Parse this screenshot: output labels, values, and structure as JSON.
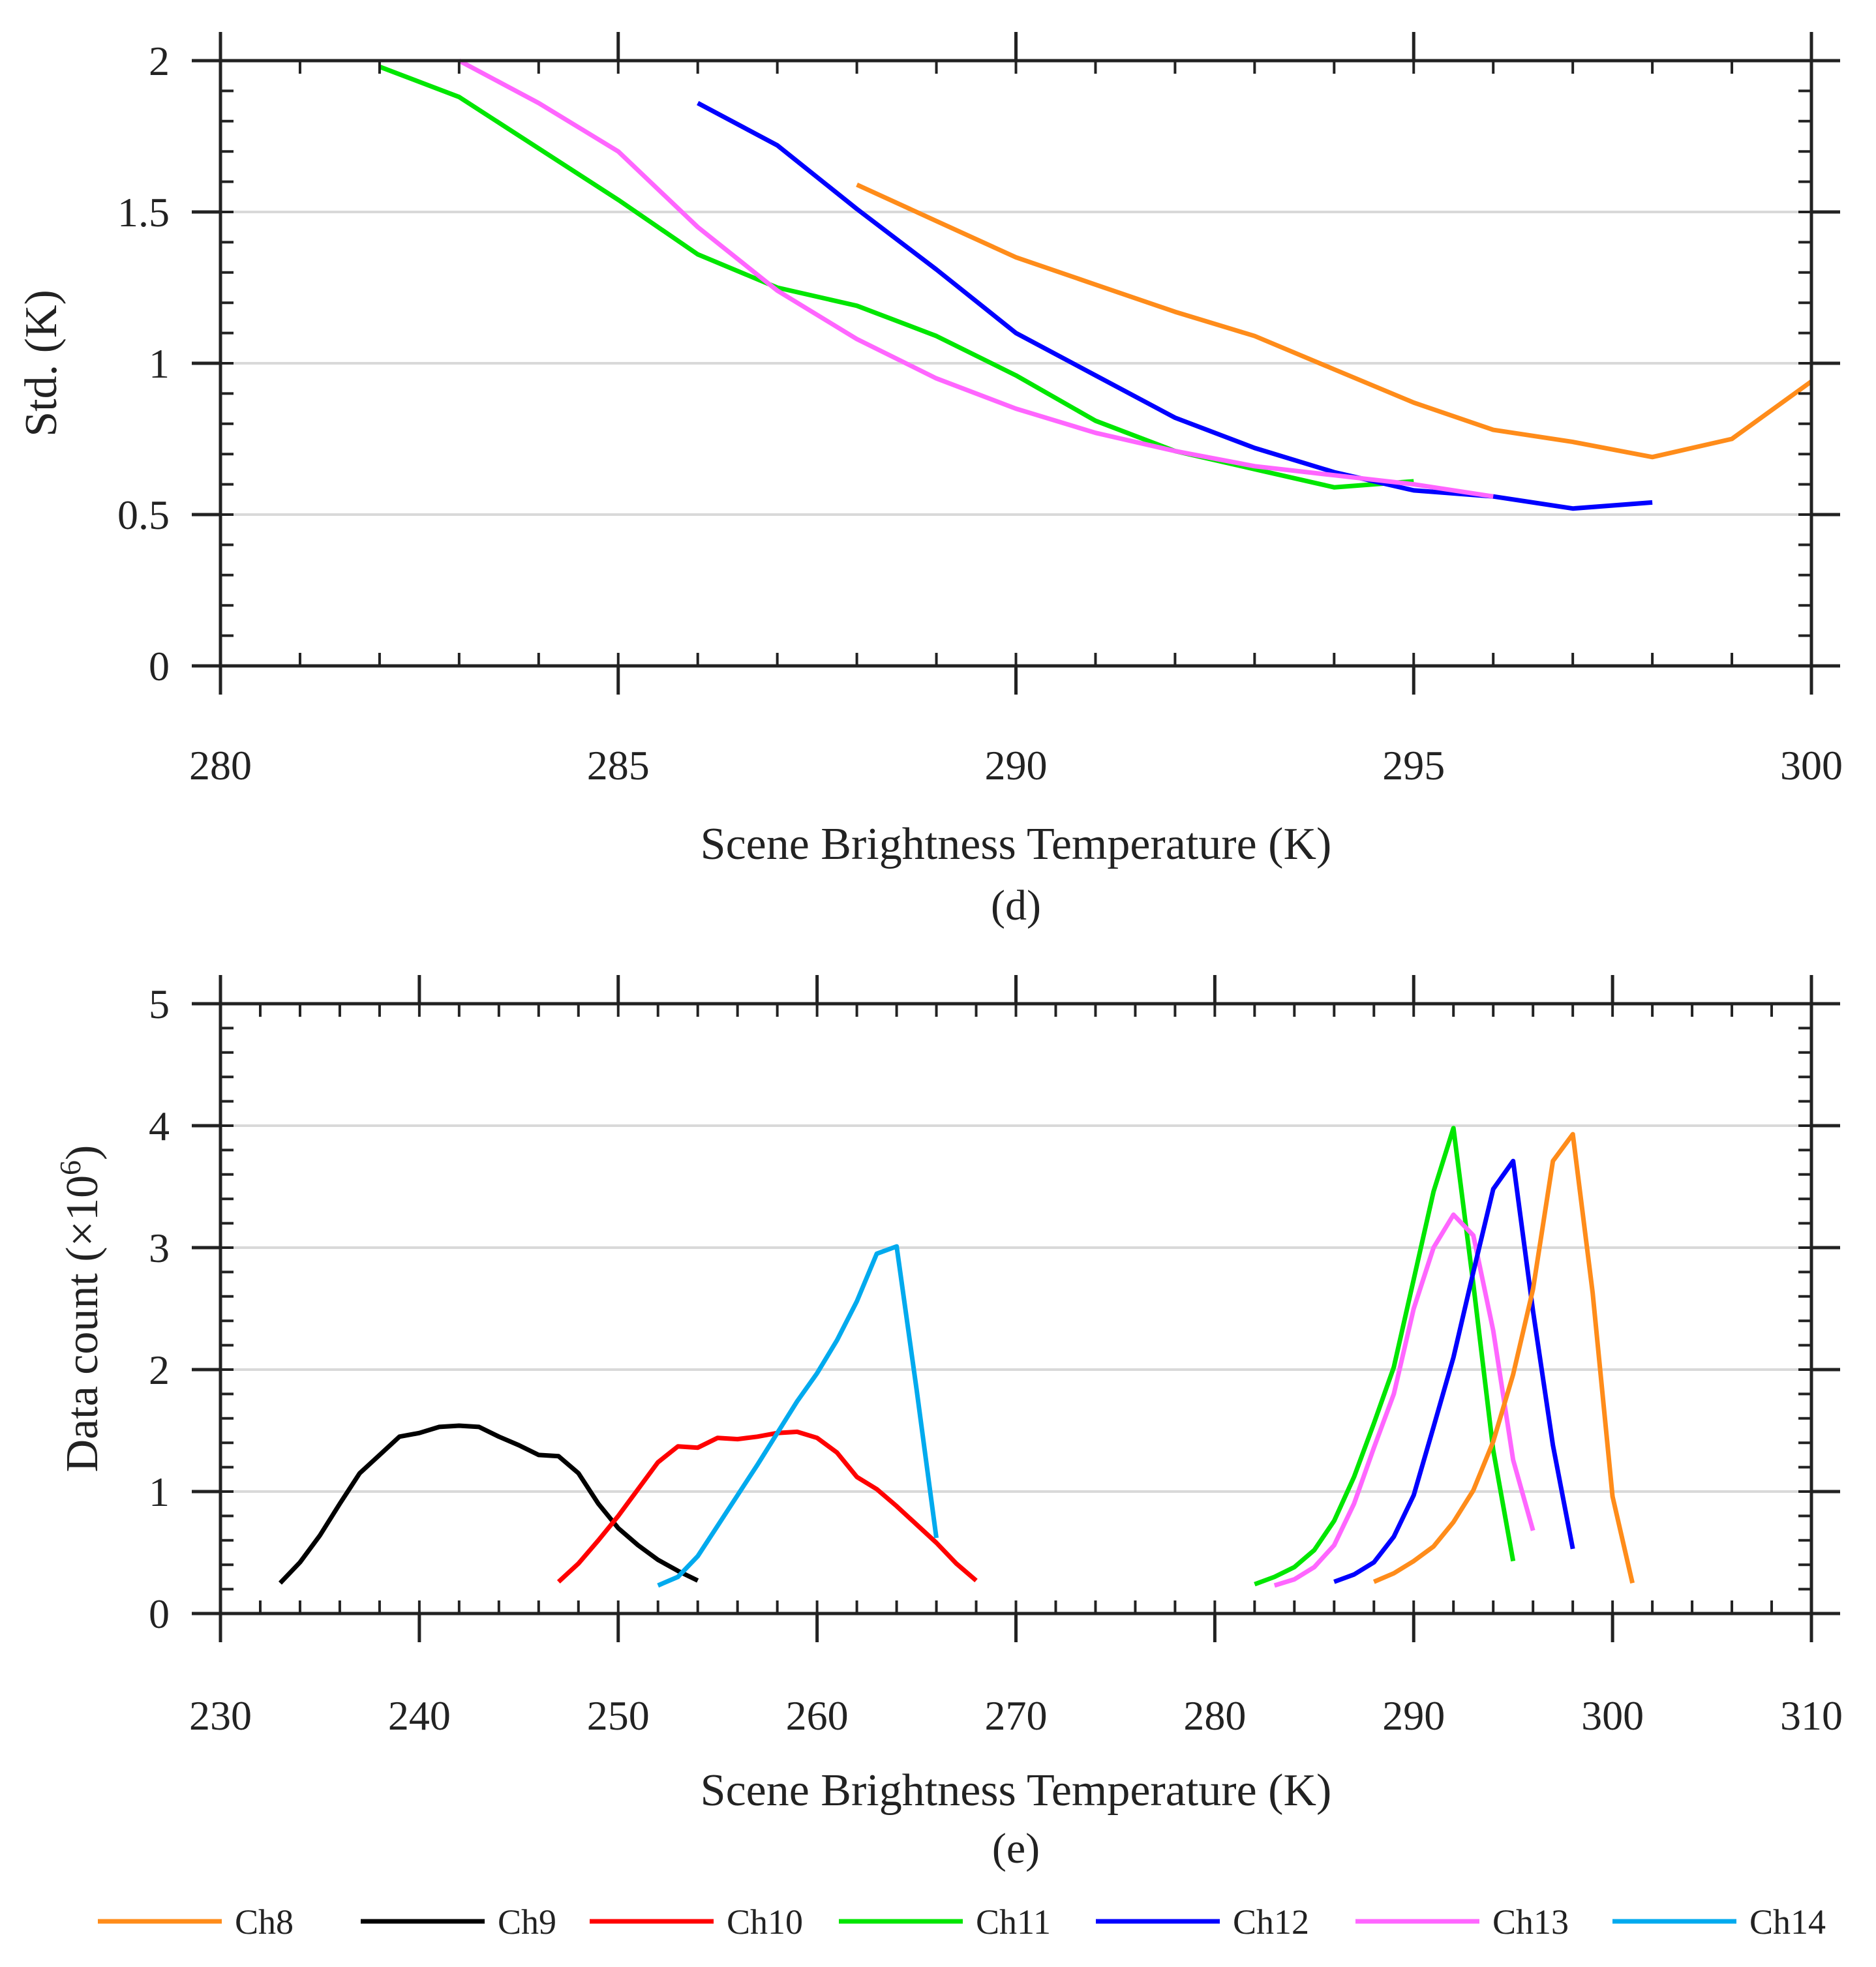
{
  "legend": [
    {
      "name": "Ch8",
      "color": "#ff8c1a"
    },
    {
      "name": "Ch9",
      "color": "#000000"
    },
    {
      "name": "Ch10",
      "color": "#ff0000"
    },
    {
      "name": "Ch11",
      "color": "#00e600"
    },
    {
      "name": "Ch12",
      "color": "#0000ff"
    },
    {
      "name": "Ch13",
      "color": "#ff66ff"
    },
    {
      "name": "Ch14",
      "color": "#00aaee"
    }
  ],
  "chart_data": [
    {
      "id": "d",
      "type": "line",
      "panel_label": "(d)",
      "xlabel": "Scene Brightness Temperature (K)",
      "ylabel": "Std. (K)",
      "xlim": [
        280,
        300
      ],
      "ylim": [
        0,
        2
      ],
      "xticks": [
        280,
        285,
        290,
        295,
        300
      ],
      "yticks": [
        0,
        0.5,
        1,
        1.5,
        2
      ],
      "ytick_labels": [
        "0",
        "0.5",
        "1",
        "1.5",
        "2"
      ],
      "grid": "horizontal",
      "series": [
        {
          "name": "Ch8",
          "x": [
            288,
            289,
            290,
            291,
            292,
            293,
            294,
            295,
            296,
            297,
            298,
            299,
            300
          ],
          "y": [
            1.59,
            1.47,
            1.35,
            1.26,
            1.17,
            1.09,
            0.98,
            0.87,
            0.78,
            0.74,
            0.69,
            0.75,
            0.94
          ]
        },
        {
          "name": "Ch11",
          "x": [
            282,
            283,
            284,
            285,
            286,
            287,
            288,
            289,
            290,
            291,
            292,
            293,
            294,
            295
          ],
          "y": [
            1.98,
            1.88,
            1.71,
            1.54,
            1.36,
            1.25,
            1.19,
            1.09,
            0.96,
            0.81,
            0.71,
            0.65,
            0.59,
            0.61
          ]
        },
        {
          "name": "Ch12",
          "x": [
            286,
            287,
            288,
            289,
            290,
            291,
            292,
            293,
            294,
            295,
            296,
            297,
            298
          ],
          "y": [
            1.86,
            1.72,
            1.51,
            1.31,
            1.1,
            0.96,
            0.82,
            0.72,
            0.64,
            0.58,
            0.56,
            0.52,
            0.54
          ]
        },
        {
          "name": "Ch13",
          "x": [
            283,
            284,
            285,
            286,
            287,
            288,
            289,
            290,
            291,
            292,
            293,
            294,
            295,
            296
          ],
          "y": [
            2.0,
            1.86,
            1.7,
            1.45,
            1.24,
            1.08,
            0.95,
            0.85,
            0.77,
            0.71,
            0.66,
            0.63,
            0.6,
            0.56
          ]
        }
      ]
    },
    {
      "id": "e",
      "type": "line",
      "panel_label": "(e)",
      "xlabel": "Scene Brightness Temperature (K)",
      "ylabel_main": "Data count (×10",
      "ylabel_sup": "6",
      "ylabel_end": ")",
      "xlim": [
        230,
        310
      ],
      "ylim": [
        0,
        5
      ],
      "xticks": [
        230,
        240,
        250,
        260,
        270,
        280,
        290,
        300,
        310
      ],
      "yticks": [
        0,
        1,
        2,
        3,
        4,
        5
      ],
      "ytick_labels": [
        "0",
        "1",
        "2",
        "3",
        "4",
        "5"
      ],
      "grid": "horizontal",
      "series": [
        {
          "name": "Ch9",
          "x": [
            233,
            234,
            235,
            236,
            237,
            238,
            239,
            240,
            241,
            242,
            243,
            244,
            245,
            246,
            247,
            248,
            249,
            250,
            251,
            252,
            253,
            254
          ],
          "y": [
            0.25,
            0.42,
            0.64,
            0.9,
            1.15,
            1.3,
            1.45,
            1.48,
            1.53,
            1.54,
            1.53,
            1.45,
            1.38,
            1.3,
            1.29,
            1.15,
            0.9,
            0.7,
            0.56,
            0.44,
            0.35,
            0.27
          ]
        },
        {
          "name": "Ch10",
          "x": [
            247,
            248,
            249,
            250,
            251,
            252,
            253,
            254,
            255,
            256,
            257,
            258,
            259,
            260,
            261,
            262,
            263,
            264,
            265,
            266,
            267,
            268
          ],
          "y": [
            0.26,
            0.41,
            0.6,
            0.8,
            1.02,
            1.24,
            1.37,
            1.36,
            1.44,
            1.43,
            1.45,
            1.48,
            1.49,
            1.44,
            1.32,
            1.12,
            1.02,
            0.88,
            0.73,
            0.58,
            0.41,
            0.27
          ]
        },
        {
          "name": "Ch14",
          "x": [
            252,
            253,
            254,
            255,
            256,
            257,
            258,
            259,
            260,
            261,
            262,
            263,
            264,
            265,
            266
          ],
          "y": [
            0.23,
            0.3,
            0.47,
            0.72,
            0.97,
            1.22,
            1.48,
            1.74,
            1.97,
            2.24,
            2.56,
            2.95,
            3.01,
            1.84,
            0.62
          ]
        },
        {
          "name": "Ch11",
          "x": [
            282,
            283,
            284,
            285,
            286,
            287,
            288,
            289,
            290,
            291,
            292,
            293,
            294,
            295
          ],
          "y": [
            0.24,
            0.3,
            0.38,
            0.52,
            0.76,
            1.12,
            1.56,
            2.02,
            2.74,
            3.46,
            3.98,
            2.7,
            1.34,
            0.43
          ]
        },
        {
          "name": "Ch13",
          "x": [
            283,
            284,
            285,
            286,
            287,
            288,
            289,
            290,
            291,
            292,
            293,
            294,
            295,
            296
          ],
          "y": [
            0.23,
            0.28,
            0.38,
            0.56,
            0.9,
            1.36,
            1.8,
            2.5,
            3.0,
            3.27,
            3.1,
            2.32,
            1.26,
            0.68
          ]
        },
        {
          "name": "Ch12",
          "x": [
            286,
            287,
            288,
            289,
            290,
            291,
            292,
            293,
            294,
            295,
            296,
            297,
            298
          ],
          "y": [
            0.26,
            0.32,
            0.42,
            0.63,
            0.97,
            1.53,
            2.1,
            2.8,
            3.48,
            3.71,
            2.48,
            1.38,
            0.53
          ]
        },
        {
          "name": "Ch8",
          "x": [
            288,
            289,
            290,
            291,
            292,
            293,
            294,
            295,
            296,
            297,
            298,
            299,
            300,
            301
          ],
          "y": [
            0.26,
            0.33,
            0.43,
            0.55,
            0.75,
            1.01,
            1.41,
            1.96,
            2.66,
            3.71,
            3.93,
            2.63,
            0.96,
            0.25
          ]
        }
      ]
    }
  ]
}
